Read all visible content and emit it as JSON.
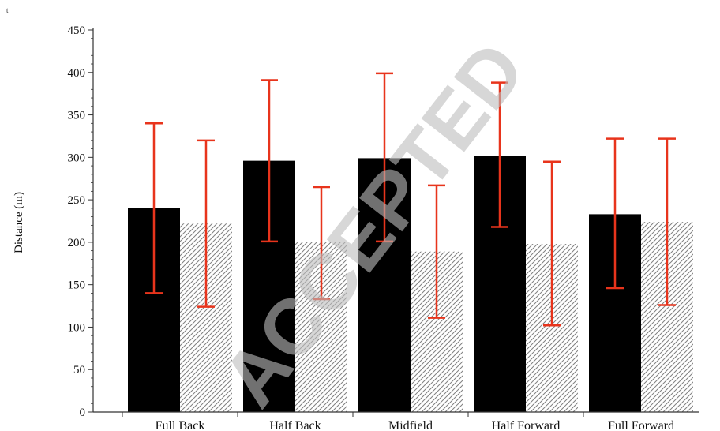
{
  "page_marks": {
    "stray_mark": "t",
    "watermark": "ACCEPTED"
  },
  "colors": {
    "series1_fill": "#000000",
    "series2_fill": "#ffffff",
    "series2_hatch": "#808080",
    "error_bar": "#e8341c",
    "axis": "#333333"
  },
  "chart_data": {
    "type": "bar",
    "categories": [
      "Full Back",
      "Half Back",
      "Midfield",
      "Half Forward",
      "Full Forward"
    ],
    "ylabel": "Distance (m)",
    "xlabel": "",
    "title": "",
    "ylim": [
      0,
      450
    ],
    "yticks": [
      0,
      50,
      100,
      150,
      200,
      250,
      300,
      350,
      400,
      450
    ],
    "grid": false,
    "legend": "none",
    "series": [
      {
        "style": "solid-black",
        "values": [
          240,
          296,
          299,
          302,
          233
        ],
        "error_low": [
          140,
          201,
          201,
          218,
          146
        ],
        "error_high": [
          340,
          391,
          399,
          388,
          322
        ]
      },
      {
        "style": "hatched",
        "values": [
          222,
          200,
          189,
          198,
          224
        ],
        "error_low": [
          124,
          133,
          111,
          102,
          126
        ],
        "error_high": [
          320,
          265,
          267,
          295,
          322
        ]
      }
    ]
  }
}
